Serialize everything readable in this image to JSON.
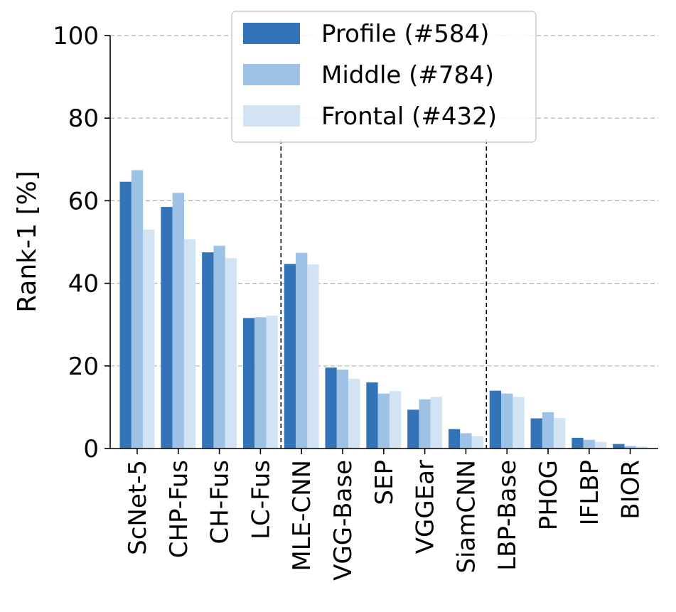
{
  "chart_data": {
    "type": "bar",
    "ylabel": "Rank-1 [%]",
    "ylim": [
      0,
      100
    ],
    "yticks": [
      "0",
      "20",
      "40",
      "60",
      "80",
      "100"
    ],
    "grid": true,
    "legend_position": "top-center",
    "categories": [
      "ScNet-5",
      "CHP-Fus",
      "CH-Fus",
      "LC-Fus",
      "MLE-CNN",
      "VGG-Base",
      "SEP",
      "VGGEar",
      "SiamCNN",
      "LBP-Base",
      "PHOG",
      "IFLBP",
      "BIOR"
    ],
    "series": [
      {
        "name": "Profile (#584)",
        "color": "#3274b7",
        "values": [
          64.6,
          58.5,
          47.5,
          31.6,
          44.7,
          19.6,
          16.0,
          9.4,
          4.7,
          14.0,
          7.3,
          2.6,
          1.1
        ]
      },
      {
        "name": "Middle (#784)",
        "color": "#9ec2e6",
        "values": [
          67.4,
          61.9,
          49.1,
          31.8,
          47.4,
          19.1,
          13.3,
          11.9,
          3.7,
          13.3,
          8.8,
          2.1,
          0.6
        ]
      },
      {
        "name": "Frontal (#432)",
        "color": "#d2e3f3",
        "values": [
          53.0,
          50.7,
          46.1,
          32.2,
          44.6,
          16.9,
          13.9,
          12.5,
          3.0,
          12.5,
          7.4,
          1.6,
          0.5
        ]
      }
    ],
    "group_separators_after": [
      "LC-Fus",
      "SiamCNN"
    ]
  }
}
